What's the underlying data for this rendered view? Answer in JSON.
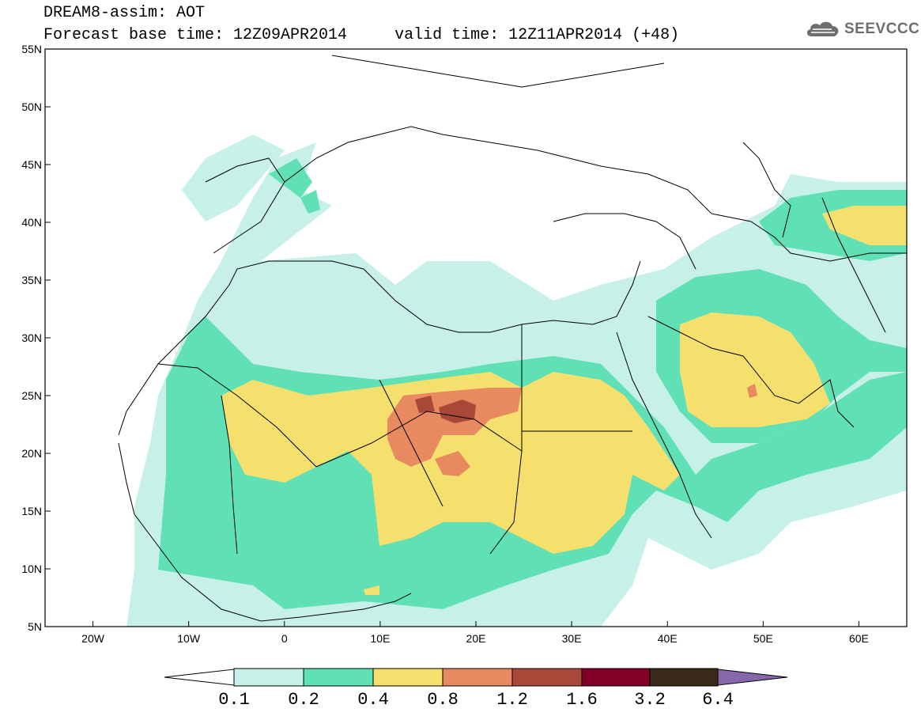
{
  "title": {
    "line1": "DREAM8-assim: AOT",
    "line2": "Forecast base time: 12Z09APR2014     valid time: 12Z11APR2014 (+48)"
  },
  "logo": {
    "text": "SEEVCCC",
    "icon": "cloud-icon",
    "color": "#6e6e6e"
  },
  "map": {
    "lon_range": [
      -25,
      65
    ],
    "lat_range": [
      5,
      55
    ],
    "lat_ticks": [
      "55N",
      "50N",
      "45N",
      "40N",
      "35N",
      "30N",
      "25N",
      "20N",
      "15N",
      "10N",
      "5N"
    ],
    "lon_ticks": [
      "20W",
      "10W",
      "0",
      "10E",
      "20E",
      "30E",
      "40E",
      "50E",
      "60E"
    ]
  },
  "colorbar": {
    "labels": [
      "0.1",
      "0.2",
      "0.4",
      "0.8",
      "1.2",
      "1.6",
      "3.2",
      "6.4"
    ],
    "colors": [
      "#ffffff",
      "#c6f0e8",
      "#5fe0b5",
      "#f5e06e",
      "#e88a60",
      "#a84838",
      "#820028",
      "#3a2a1a",
      "#8866aa"
    ]
  }
}
